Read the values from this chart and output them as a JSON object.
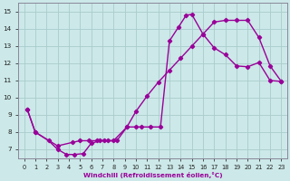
{
  "xlabel": "Windchill (Refroidissement éolien,°C)",
  "ylabel": "",
  "xlim": [
    -0.5,
    23.5
  ],
  "ylim": [
    6.5,
    15.5
  ],
  "xticks": [
    0,
    1,
    2,
    3,
    4,
    5,
    6,
    7,
    8,
    9,
    10,
    11,
    12,
    13,
    14,
    15,
    16,
    17,
    18,
    19,
    20,
    21,
    22,
    23
  ],
  "yticks": [
    7,
    8,
    9,
    10,
    11,
    12,
    13,
    14,
    15
  ],
  "bg_color": "#cce8e8",
  "grid_color": "#aacccc",
  "line_color": "#990099",
  "line_width": 1.0,
  "marker": "D",
  "marker_size": 2.2,
  "curve1_x": [
    0.3,
    1.0,
    2.2,
    3.0,
    3.8,
    4.5,
    5.3,
    6.0,
    6.8,
    7.5,
    8.3,
    9.2,
    10.0,
    10.5,
    11.3,
    12.2,
    13.0,
    13.8,
    14.5,
    15.0,
    16.0,
    17.0,
    18.0,
    19.0,
    20.0,
    21.0,
    22.0,
    23.0
  ],
  "curve1_y": [
    9.3,
    8.0,
    7.5,
    7.0,
    6.7,
    6.7,
    6.75,
    7.35,
    7.5,
    7.5,
    7.5,
    8.3,
    8.3,
    8.3,
    8.3,
    8.3,
    13.3,
    14.1,
    14.8,
    14.85,
    13.7,
    12.9,
    12.5,
    11.85,
    11.8,
    12.05,
    11.0,
    10.95
  ],
  "curve2_x": [
    0.3,
    1.0,
    3.0,
    4.3,
    5.0,
    5.8,
    6.5,
    7.2,
    8.0,
    9.2,
    10.0,
    11.0,
    12.0,
    13.0,
    14.0,
    15.0,
    16.0,
    17.0,
    18.0,
    19.0,
    20.0,
    21.0,
    22.0,
    23.0
  ],
  "curve2_y": [
    9.3,
    8.0,
    7.2,
    7.4,
    7.5,
    7.5,
    7.5,
    7.5,
    7.5,
    8.3,
    9.2,
    10.1,
    10.9,
    11.6,
    12.3,
    13.0,
    13.7,
    14.4,
    14.5,
    14.5,
    14.5,
    13.5,
    11.85,
    10.95
  ]
}
